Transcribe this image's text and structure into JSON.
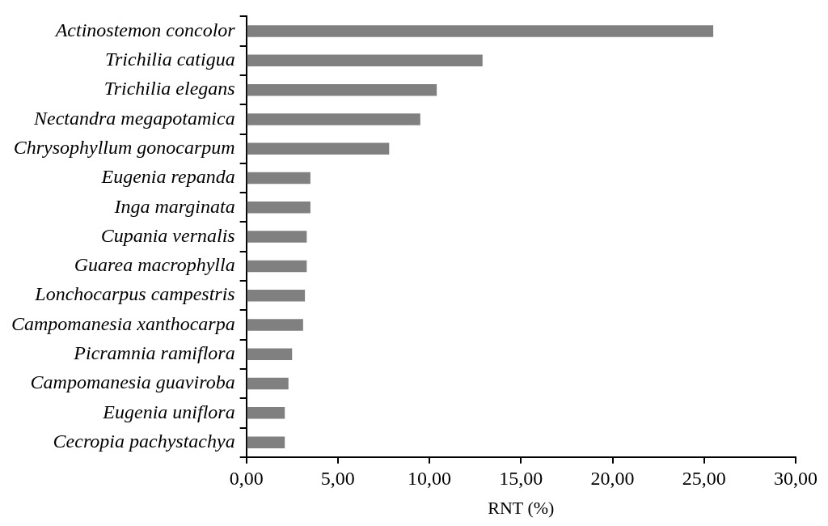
{
  "chart_data": {
    "type": "bar",
    "orientation": "horizontal",
    "xlabel": "RNT (%)",
    "categories": [
      "Actinostemon concolor",
      "Trichilia catigua",
      "Trichilia elegans",
      "Nectandra megapotamica",
      "Chrysophyllum gonocarpum",
      "Eugenia repanda",
      "Inga marginata",
      "Cupania vernalis",
      "Guarea macrophylla",
      "Lonchocarpus campestris",
      "Campomanesia xanthocarpa",
      "Picramnia ramiflora",
      "Campomanesia guaviroba",
      "Eugenia uniflora",
      "Cecropia pachystachya"
    ],
    "values": [
      25.5,
      12.9,
      10.4,
      9.5,
      7.8,
      3.5,
      3.5,
      3.3,
      3.3,
      3.2,
      3.1,
      2.5,
      2.3,
      2.1,
      2.1
    ],
    "color": "#808080",
    "xlim": [
      0,
      30
    ],
    "xticks": [
      {
        "value": 0,
        "label": "0,00"
      },
      {
        "value": 5,
        "label": "5,00"
      },
      {
        "value": 10,
        "label": "10,00"
      },
      {
        "value": 15,
        "label": "15,00"
      },
      {
        "value": 20,
        "label": "20,00"
      },
      {
        "value": 25,
        "label": "25,00"
      },
      {
        "value": 30,
        "label": "30,00"
      }
    ],
    "grid": false,
    "legend": false
  }
}
